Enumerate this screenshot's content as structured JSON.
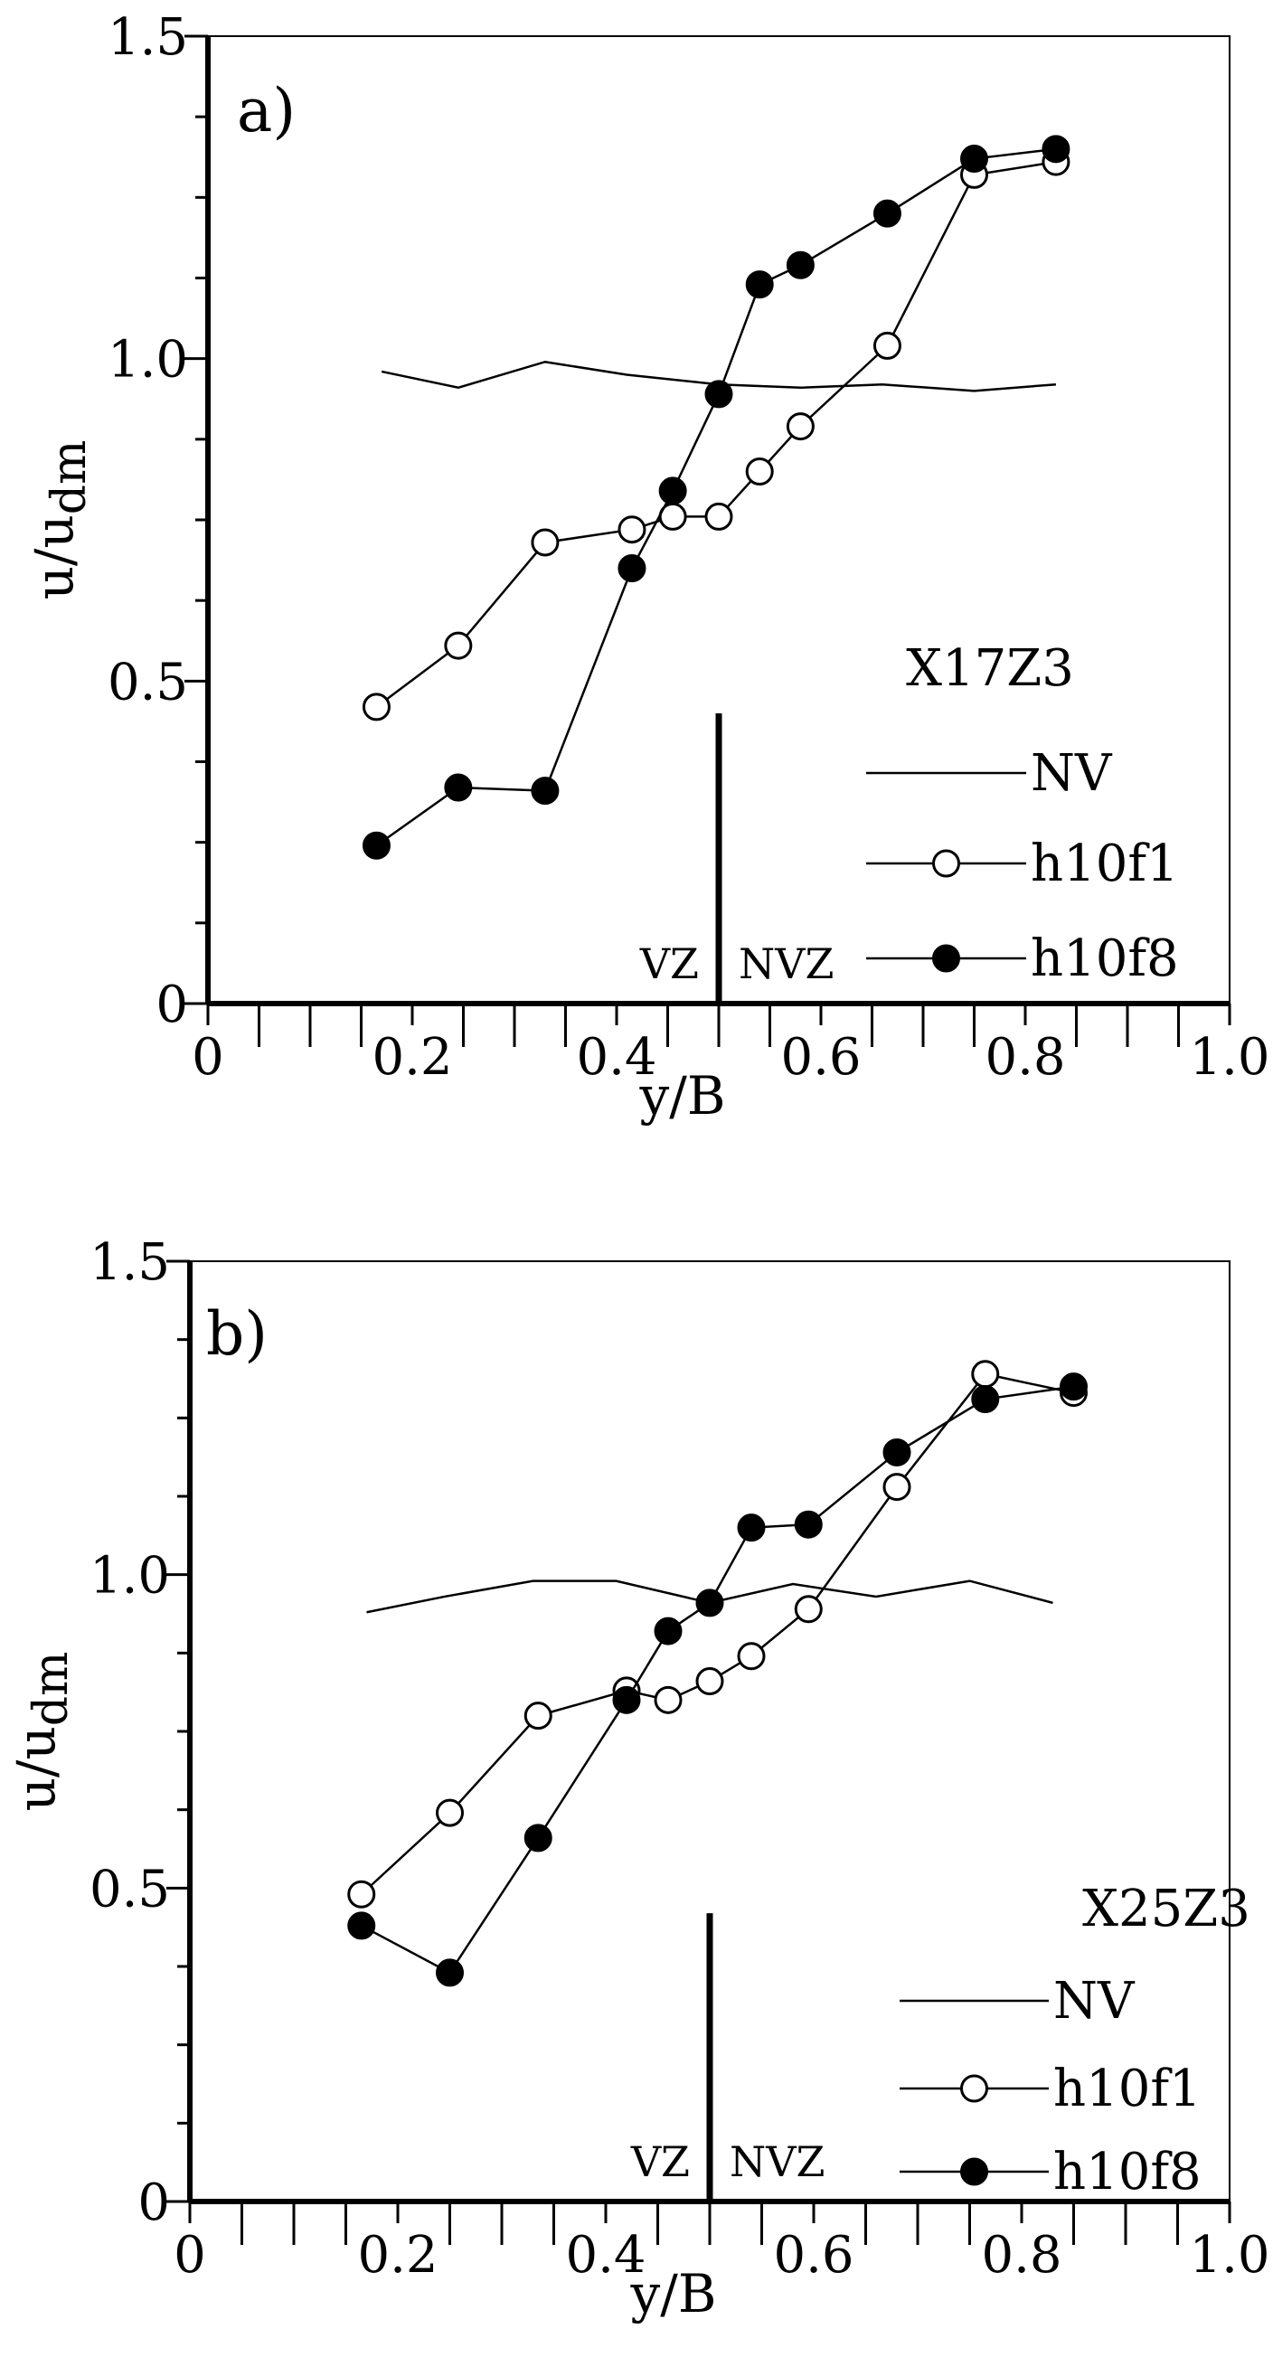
{
  "chart_data": [
    {
      "type": "line",
      "panel_label": "a)",
      "xlabel": "y/B",
      "ylabel": "u/u",
      "ylabel_sub": "dm",
      "xlim": [
        0,
        1.0
      ],
      "ylim": [
        0,
        1.5
      ],
      "x_ticks": [
        "0",
        "0.2",
        "0.4",
        "0.6",
        "0.8",
        "1.0"
      ],
      "y_ticks": [
        "0",
        "0.5",
        "1.0",
        "1.5"
      ],
      "legend_title": "X17Z3",
      "vline_x": 0.5,
      "vline_top": 0.45,
      "zone_left": "VZ",
      "zone_right": "NVZ",
      "series": [
        {
          "name": "NV",
          "marker": "none",
          "x": [
            0.17,
            0.245,
            0.33,
            0.41,
            0.5,
            0.58,
            0.66,
            0.75,
            0.83
          ],
          "y": [
            0.98,
            0.955,
            0.995,
            0.975,
            0.96,
            0.955,
            0.96,
            0.95,
            0.96
          ]
        },
        {
          "name": "h10f1",
          "marker": "open",
          "x": [
            0.165,
            0.245,
            0.33,
            0.415,
            0.455,
            0.5,
            0.54,
            0.58,
            0.665,
            0.75,
            0.83
          ],
          "y": [
            0.46,
            0.555,
            0.715,
            0.735,
            0.755,
            0.755,
            0.825,
            0.895,
            1.02,
            1.285,
            1.305
          ]
        },
        {
          "name": "h10f8",
          "marker": "filled",
          "x": [
            0.165,
            0.245,
            0.33,
            0.415,
            0.455,
            0.5,
            0.54,
            0.58,
            0.665,
            0.75,
            0.83
          ],
          "y": [
            0.245,
            0.335,
            0.33,
            0.675,
            0.795,
            0.945,
            1.115,
            1.145,
            1.225,
            1.31,
            1.325
          ]
        }
      ]
    },
    {
      "type": "line",
      "panel_label": "b)",
      "xlabel": "y/B",
      "ylabel": "u/u",
      "ylabel_sub": "dm",
      "xlim": [
        0,
        1.0
      ],
      "ylim": [
        0,
        1.5
      ],
      "x_ticks": [
        "0",
        "0.2",
        "0.4",
        "0.6",
        "0.8",
        "1.0"
      ],
      "y_ticks": [
        "0",
        "0.5",
        "1.0",
        "1.5"
      ],
      "legend_title": "X25Z3",
      "vline_x": 0.5,
      "vline_top": 0.46,
      "zone_left": "VZ",
      "zone_right": "NVZ",
      "series": [
        {
          "name": "NV",
          "marker": "none",
          "x": [
            0.17,
            0.245,
            0.33,
            0.41,
            0.5,
            0.58,
            0.66,
            0.75,
            0.83
          ],
          "y": [
            0.94,
            0.965,
            0.99,
            0.99,
            0.955,
            0.985,
            0.965,
            0.99,
            0.955
          ]
        },
        {
          "name": "h10f1",
          "marker": "open",
          "x": [
            0.165,
            0.25,
            0.335,
            0.42,
            0.46,
            0.5,
            0.54,
            0.595,
            0.68,
            0.765,
            0.85
          ],
          "y": [
            0.49,
            0.62,
            0.775,
            0.815,
            0.8,
            0.83,
            0.87,
            0.945,
            1.14,
            1.32,
            1.29
          ]
        },
        {
          "name": "h10f8",
          "marker": "filled",
          "x": [
            0.165,
            0.25,
            0.335,
            0.42,
            0.46,
            0.5,
            0.54,
            0.595,
            0.68,
            0.765,
            0.85
          ],
          "y": [
            0.44,
            0.365,
            0.58,
            0.8,
            0.91,
            0.955,
            1.075,
            1.08,
            1.195,
            1.28,
            1.3
          ]
        }
      ]
    }
  ]
}
